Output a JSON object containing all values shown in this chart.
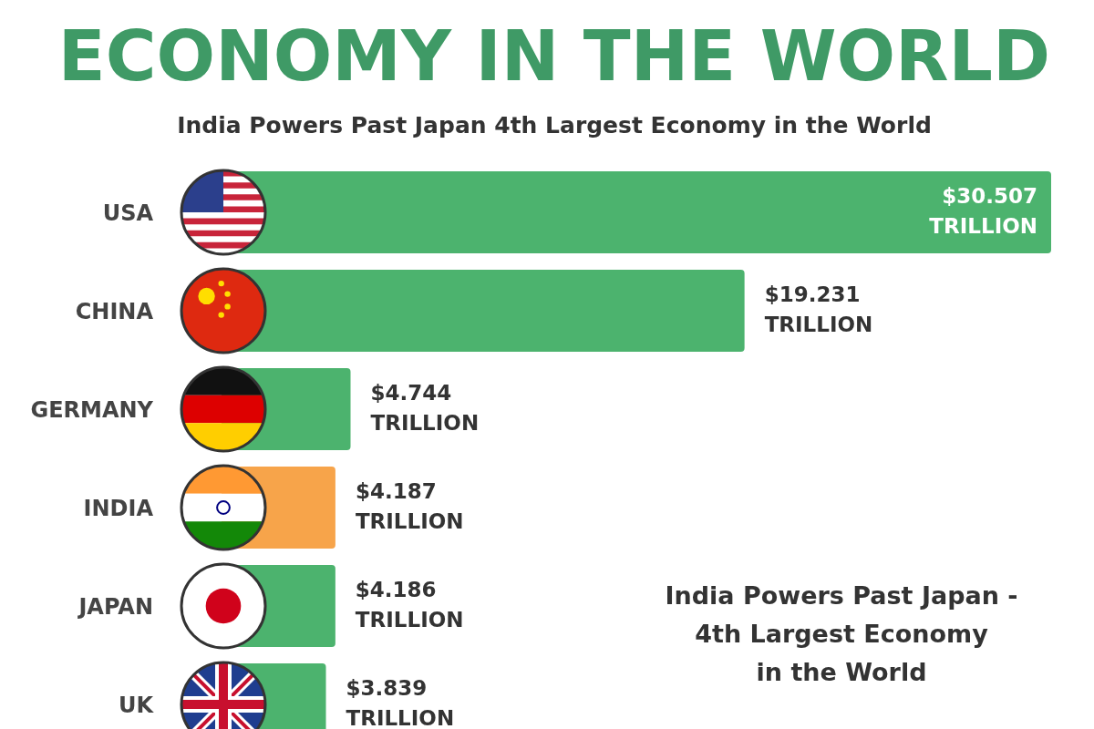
{
  "chart_data": {
    "type": "bar",
    "orientation": "horizontal",
    "title": "ECONOMY IN THE WORLD",
    "subtitle": "India Powers Past Japan 4th Largest Economy in the World",
    "categories": [
      "USA",
      "CHINA",
      "GERMANY",
      "INDIA",
      "JAPAN",
      "UK"
    ],
    "values": [
      30.507,
      19.231,
      4.744,
      4.187,
      4.186,
      3.839
    ],
    "colors": [
      "#4cb36e",
      "#4cb36e",
      "#4cb36e",
      "#f7a44a",
      "#4cb36e",
      "#4cb36e"
    ],
    "value_labels": [
      "$30.507 TRILLION",
      "$19.231 TRILLION",
      "$4.744 TRILLION",
      "$4.187 TRILLION",
      "$4.186 TRILLION",
      "$3.839 TRILLION"
    ],
    "annotations": [
      "India Powers Past Japan -\n4th Largest Economy\nin the World"
    ]
  }
}
